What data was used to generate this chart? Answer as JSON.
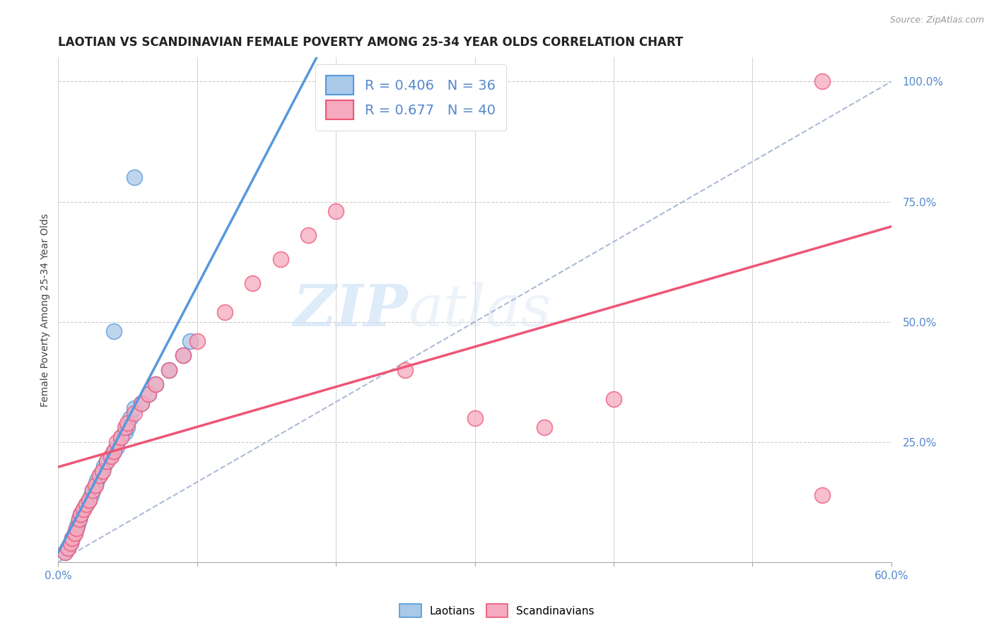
{
  "title": "LAOTIAN VS SCANDINAVIAN FEMALE POVERTY AMONG 25-34 YEAR OLDS CORRELATION CHART",
  "source": "Source: ZipAtlas.com",
  "ylabel": "Female Poverty Among 25-34 Year Olds",
  "xlim": [
    0.0,
    0.6
  ],
  "ylim": [
    0.0,
    1.05
  ],
  "xtick_positions": [
    0.0,
    0.1,
    0.2,
    0.3,
    0.4,
    0.5,
    0.6
  ],
  "xticklabels": [
    "0.0%",
    "",
    "",
    "",
    "",
    "",
    "60.0%"
  ],
  "ytick_positions": [
    0.0,
    0.25,
    0.5,
    0.75,
    1.0
  ],
  "yticklabels": [
    "",
    "25.0%",
    "50.0%",
    "75.0%",
    "100.0%"
  ],
  "laotian_R": 0.406,
  "laotian_N": 36,
  "scandinavian_R": 0.677,
  "scandinavian_N": 40,
  "laotian_color": "#aac8e8",
  "scandinavian_color": "#f5aabf",
  "laotian_line_color": "#5599dd",
  "scandinavian_line_color": "#ee5577",
  "diagonal_color": "#99aacc",
  "watermark_zip": "ZIP",
  "watermark_atlas": "atlas",
  "laotian_x": [
    0.005,
    0.007,
    0.009,
    0.01,
    0.012,
    0.013,
    0.014,
    0.015,
    0.016,
    0.018,
    0.02,
    0.022,
    0.024,
    0.025,
    0.027,
    0.028,
    0.03,
    0.032,
    0.033,
    0.035,
    0.038,
    0.04,
    0.042,
    0.045,
    0.048,
    0.05,
    0.052,
    0.055,
    0.06,
    0.065,
    0.07,
    0.08,
    0.09,
    0.095,
    0.055,
    0.04
  ],
  "laotian_y": [
    0.02,
    0.03,
    0.04,
    0.05,
    0.06,
    0.07,
    0.08,
    0.09,
    0.1,
    0.11,
    0.12,
    0.13,
    0.14,
    0.15,
    0.16,
    0.17,
    0.18,
    0.19,
    0.2,
    0.21,
    0.22,
    0.23,
    0.24,
    0.26,
    0.27,
    0.28,
    0.3,
    0.32,
    0.33,
    0.35,
    0.37,
    0.4,
    0.43,
    0.46,
    0.8,
    0.48
  ],
  "scandinavian_x": [
    0.005,
    0.007,
    0.009,
    0.01,
    0.012,
    0.013,
    0.015,
    0.016,
    0.018,
    0.02,
    0.022,
    0.025,
    0.027,
    0.03,
    0.032,
    0.035,
    0.038,
    0.04,
    0.042,
    0.045,
    0.048,
    0.05,
    0.055,
    0.06,
    0.065,
    0.07,
    0.08,
    0.09,
    0.1,
    0.12,
    0.14,
    0.16,
    0.18,
    0.2,
    0.25,
    0.3,
    0.35,
    0.4,
    0.55,
    0.55
  ],
  "scandinavian_y": [
    0.02,
    0.03,
    0.04,
    0.05,
    0.06,
    0.07,
    0.09,
    0.1,
    0.11,
    0.12,
    0.13,
    0.15,
    0.16,
    0.18,
    0.19,
    0.21,
    0.22,
    0.23,
    0.25,
    0.26,
    0.28,
    0.29,
    0.31,
    0.33,
    0.35,
    0.37,
    0.4,
    0.43,
    0.46,
    0.52,
    0.58,
    0.63,
    0.68,
    0.73,
    0.4,
    0.3,
    0.28,
    0.34,
    1.0,
    0.14
  ],
  "title_fontsize": 12,
  "axis_label_fontsize": 10,
  "tick_fontsize": 11,
  "legend_fontsize": 14
}
